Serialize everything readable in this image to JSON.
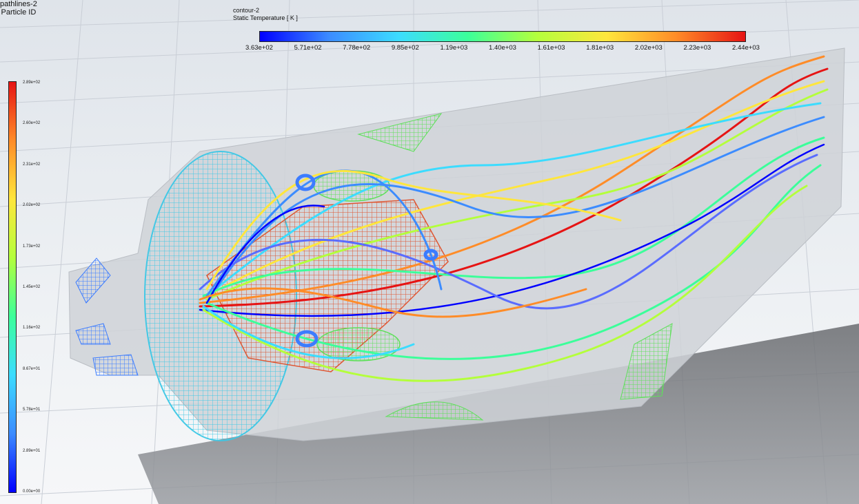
{
  "pathlines": {
    "name": "pathlines-2",
    "variable": "Particle ID",
    "ticks": [
      "2.89e+02",
      "2.60e+02",
      "2.31e+02",
      "2.02e+02",
      "1.73e+02",
      "1.45e+02",
      "1.16e+02",
      "8.67e+01",
      "5.78e+01",
      "2.89e+01",
      "0.00e+00"
    ]
  },
  "contour": {
    "name": "contour-2",
    "variable": "Static Temperature [ K ]",
    "ticks": [
      "3.63e+02",
      "5.71e+02",
      "7.78e+02",
      "9.85e+02",
      "1.19e+03",
      "1.40e+03",
      "1.61e+03",
      "1.81e+03",
      "2.02e+03",
      "2.23e+03",
      "2.44e+03"
    ]
  },
  "colors": {
    "colormap": [
      "#0000ff",
      "#3c8cff",
      "#3cdcff",
      "#3cff9a",
      "#b4ff3c",
      "#ffe63c",
      "#ff8c28",
      "#e61414"
    ],
    "background": "#e9edf2",
    "body": "#d2d5da"
  }
}
